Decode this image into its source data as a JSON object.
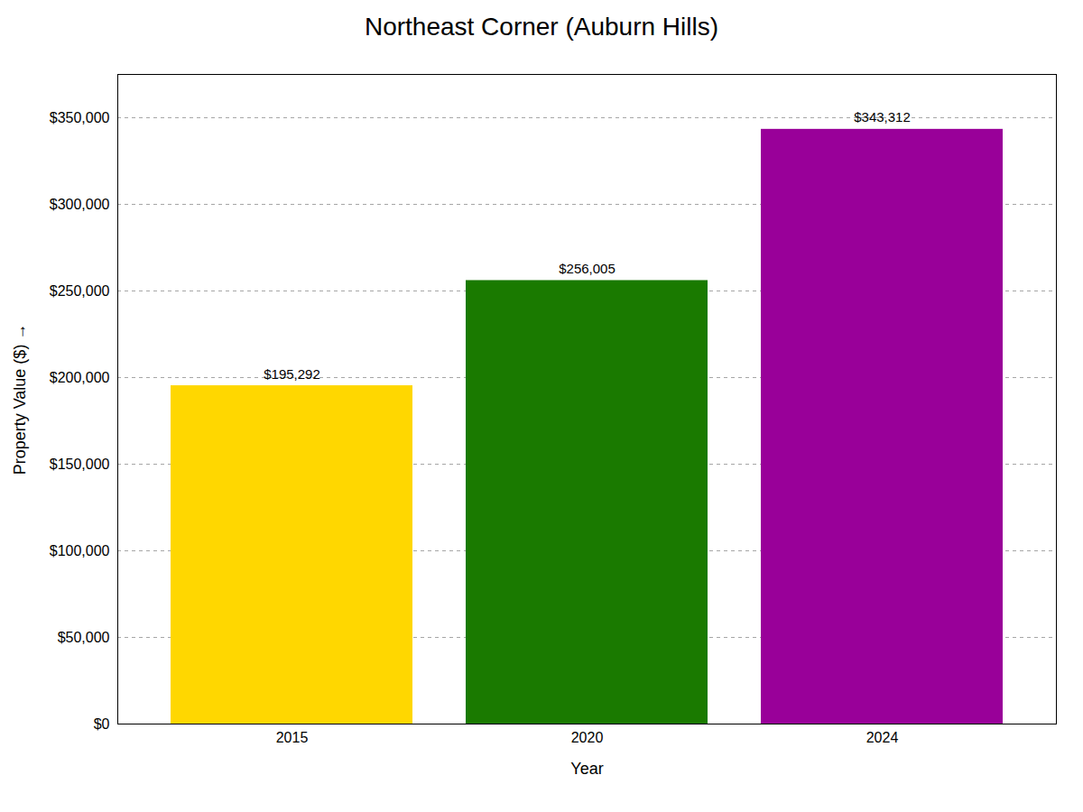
{
  "chart_data": {
    "type": "bar",
    "title": "Northeast Corner (Auburn Hills)",
    "categories": [
      "2015",
      "2020",
      "2024"
    ],
    "values": [
      195292,
      256005,
      343312
    ],
    "value_labels": [
      "$195,292",
      "$256,005",
      "$343,312"
    ],
    "colors": [
      "#FFD700",
      "#1a7a00",
      "#990099"
    ],
    "xlabel": "Year",
    "ylabel": "Property Value ($)",
    "ylim": [
      0,
      375000
    ],
    "yticks": [
      {
        "value": 0,
        "label": "$0"
      },
      {
        "value": 50000,
        "label": "$50,000"
      },
      {
        "value": 100000,
        "label": "$100,000"
      },
      {
        "value": 150000,
        "label": "$150,000"
      },
      {
        "value": 200000,
        "label": "$200,000"
      },
      {
        "value": 250000,
        "label": "$250,000"
      },
      {
        "value": 300000,
        "label": "$300,000"
      },
      {
        "value": 350000,
        "label": "$350,000"
      }
    ],
    "grid": true,
    "data_labels": true
  }
}
